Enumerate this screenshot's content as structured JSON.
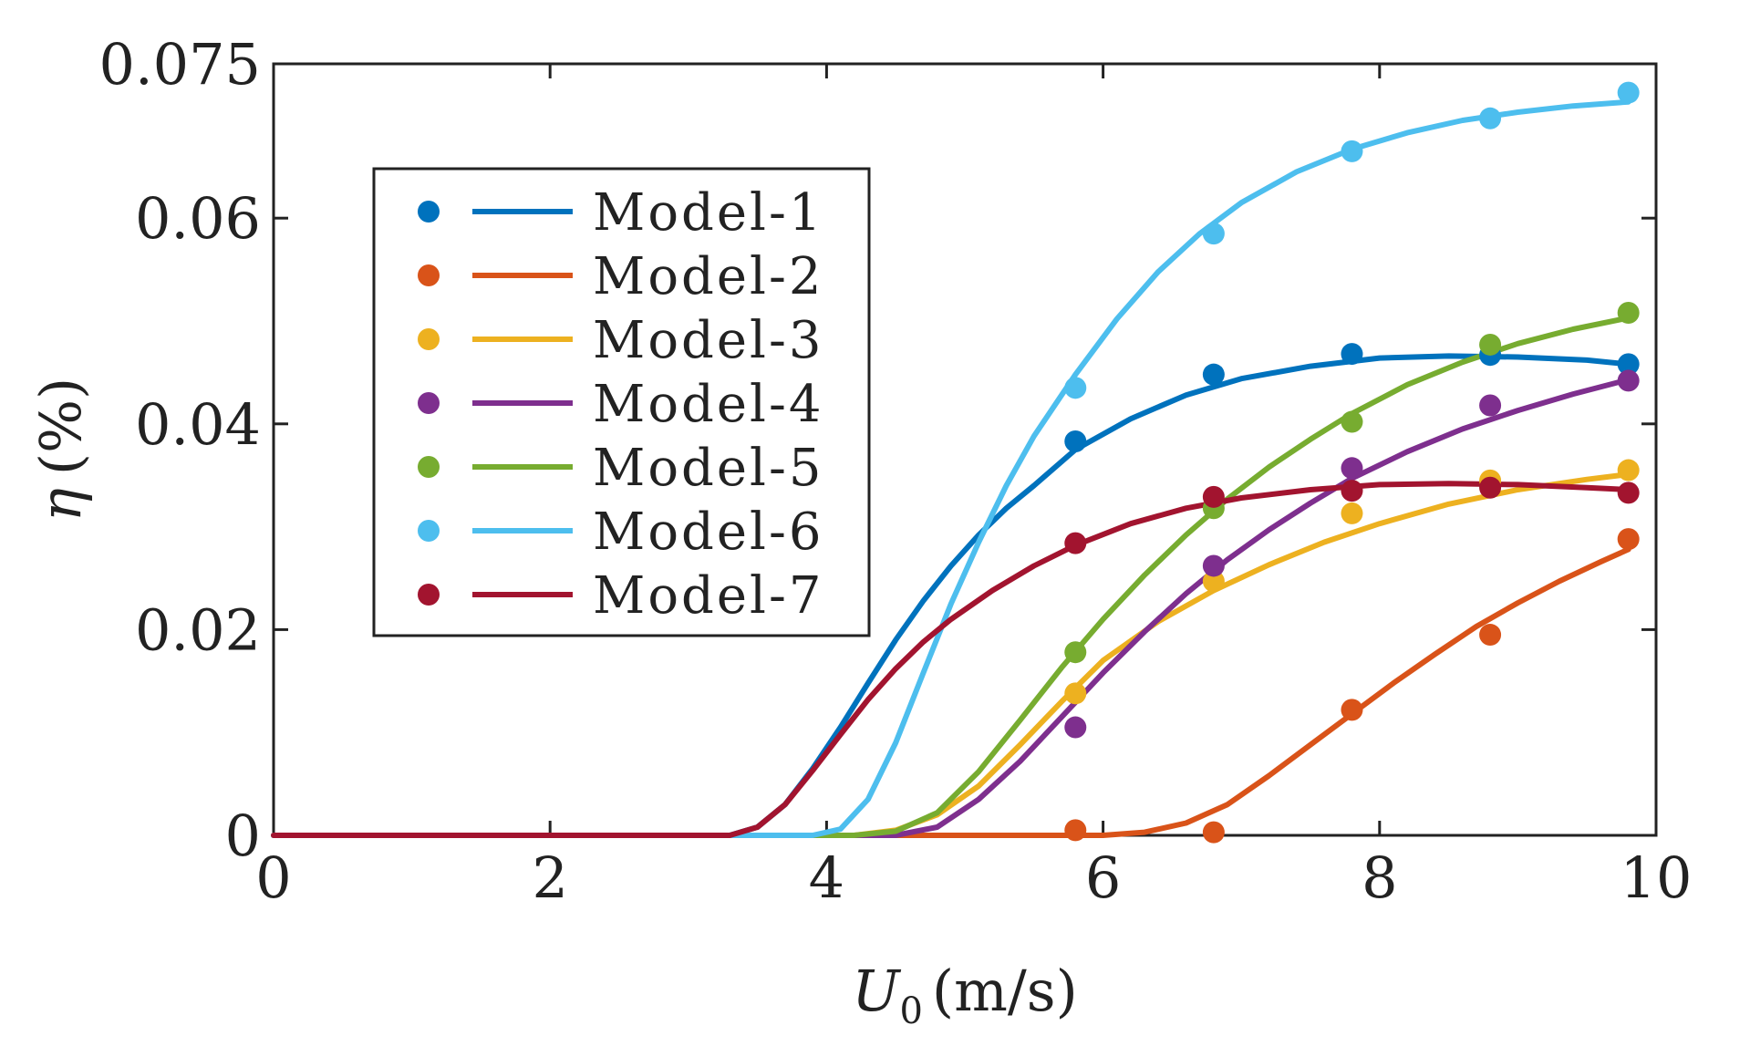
{
  "chart_data": {
    "type": "line",
    "title": "",
    "xlabel_var": "U",
    "xlabel_sub": "0",
    "xlabel_unit": "(m/s)",
    "ylabel_var": "η",
    "ylabel_unit": "(%)",
    "xlim": [
      0,
      10
    ],
    "ylim": [
      0,
      0.075
    ],
    "xticks": [
      0,
      2,
      4,
      6,
      8,
      10
    ],
    "xtick_labels": [
      "0",
      "2",
      "4",
      "6",
      "8",
      "10"
    ],
    "yticks": [
      0,
      0.02,
      0.04,
      0.06,
      0.075
    ],
    "ytick_labels": [
      "0",
      "0.02",
      "0.04",
      "0.06",
      "0.075"
    ],
    "grid": false,
    "legend_position": "upper-left",
    "x_points": [
      5.8,
      6.8,
      7.8,
      8.8,
      9.8
    ],
    "series": [
      {
        "name": "Model-1",
        "color": "#0072BD",
        "points": [
          0.0383,
          0.0448,
          0.0468,
          0.0467,
          0.0458
        ],
        "curve_x": [
          0,
          3.3,
          3.5,
          3.7,
          3.9,
          4.1,
          4.3,
          4.5,
          4.7,
          4.9,
          5.1,
          5.3,
          5.5,
          5.8,
          6.2,
          6.6,
          7.0,
          7.5,
          8.0,
          8.5,
          9.0,
          9.5,
          9.8
        ],
        "curve_y": [
          0,
          0,
          0.0008,
          0.003,
          0.0065,
          0.0105,
          0.0148,
          0.019,
          0.0228,
          0.0262,
          0.0292,
          0.0318,
          0.034,
          0.0375,
          0.0405,
          0.0428,
          0.0444,
          0.0456,
          0.0464,
          0.0466,
          0.0465,
          0.0462,
          0.0458
        ]
      },
      {
        "name": "Model-2",
        "color": "#D95319",
        "points": [
          0.0005,
          0.0003,
          0.0122,
          0.0195,
          0.0288
        ],
        "curve_x": [
          0,
          6.0,
          6.3,
          6.6,
          6.9,
          7.2,
          7.5,
          7.8,
          8.1,
          8.4,
          8.7,
          9.0,
          9.3,
          9.6,
          9.8
        ],
        "curve_y": [
          0,
          0,
          0.0003,
          0.0012,
          0.003,
          0.0058,
          0.0088,
          0.0118,
          0.0148,
          0.0176,
          0.0203,
          0.0226,
          0.0247,
          0.0266,
          0.0278
        ]
      },
      {
        "name": "Model-3",
        "color": "#EDB120",
        "points": [
          0.0138,
          0.0247,
          0.0313,
          0.0345,
          0.0355
        ],
        "curve_x": [
          0,
          4.2,
          4.5,
          4.8,
          5.1,
          5.4,
          5.7,
          6.0,
          6.4,
          6.8,
          7.2,
          7.6,
          8.0,
          8.5,
          9.0,
          9.5,
          9.8
        ],
        "curve_y": [
          0,
          0,
          0.0005,
          0.002,
          0.0048,
          0.0088,
          0.013,
          0.017,
          0.0208,
          0.0238,
          0.0263,
          0.0285,
          0.0303,
          0.0322,
          0.0336,
          0.0346,
          0.0351
        ]
      },
      {
        "name": "Model-4",
        "color": "#7E2F8E",
        "points": [
          0.0105,
          0.0262,
          0.0357,
          0.0418,
          0.0442
        ],
        "curve_x": [
          0,
          4.5,
          4.8,
          5.1,
          5.4,
          5.7,
          6.0,
          6.3,
          6.6,
          6.9,
          7.2,
          7.5,
          7.8,
          8.2,
          8.6,
          9.0,
          9.4,
          9.8
        ],
        "curve_y": [
          0,
          0,
          0.0008,
          0.0035,
          0.0072,
          0.0115,
          0.0158,
          0.0198,
          0.0235,
          0.0268,
          0.0297,
          0.0323,
          0.0347,
          0.0373,
          0.0395,
          0.0413,
          0.0429,
          0.0443
        ]
      },
      {
        "name": "Model-5",
        "color": "#77AC30",
        "points": [
          0.0178,
          0.0318,
          0.0402,
          0.0477,
          0.0508
        ],
        "curve_x": [
          0,
          4.2,
          4.5,
          4.8,
          5.1,
          5.4,
          5.7,
          6.0,
          6.3,
          6.6,
          6.9,
          7.2,
          7.5,
          7.8,
          8.2,
          8.6,
          9.0,
          9.4,
          9.8
        ],
        "curve_y": [
          0,
          0,
          0.0004,
          0.0022,
          0.0062,
          0.0112,
          0.0163,
          0.021,
          0.0253,
          0.0292,
          0.0327,
          0.0358,
          0.0385,
          0.041,
          0.0438,
          0.046,
          0.0478,
          0.0492,
          0.0503
        ]
      },
      {
        "name": "Model-6",
        "color": "#4DBEEE",
        "points": [
          0.0435,
          0.0585,
          0.0665,
          0.0697,
          0.0722
        ],
        "curve_x": [
          0,
          3.9,
          4.1,
          4.3,
          4.5,
          4.7,
          4.9,
          5.1,
          5.3,
          5.5,
          5.8,
          6.1,
          6.4,
          6.7,
          7.0,
          7.4,
          7.8,
          8.2,
          8.6,
          9.0,
          9.4,
          9.8
        ],
        "curve_y": [
          0,
          0,
          0.0006,
          0.0035,
          0.009,
          0.0158,
          0.0225,
          0.0285,
          0.034,
          0.0388,
          0.0448,
          0.0502,
          0.0548,
          0.0585,
          0.0615,
          0.0645,
          0.0667,
          0.0683,
          0.0695,
          0.0703,
          0.0709,
          0.0713
        ]
      },
      {
        "name": "Model-7",
        "color": "#A2142F",
        "points": [
          0.0284,
          0.0329,
          0.0335,
          0.0338,
          0.0333
        ],
        "curve_x": [
          0,
          3.3,
          3.5,
          3.7,
          3.9,
          4.1,
          4.3,
          4.5,
          4.7,
          4.9,
          5.2,
          5.5,
          5.8,
          6.2,
          6.6,
          7.0,
          7.5,
          8.0,
          8.5,
          9.0,
          9.5,
          9.8
        ],
        "curve_y": [
          0,
          0,
          0.0008,
          0.003,
          0.0063,
          0.0098,
          0.0132,
          0.0162,
          0.0188,
          0.021,
          0.0238,
          0.0262,
          0.0282,
          0.0303,
          0.0318,
          0.0328,
          0.0336,
          0.0341,
          0.0342,
          0.0341,
          0.0338,
          0.0336
        ]
      }
    ]
  }
}
